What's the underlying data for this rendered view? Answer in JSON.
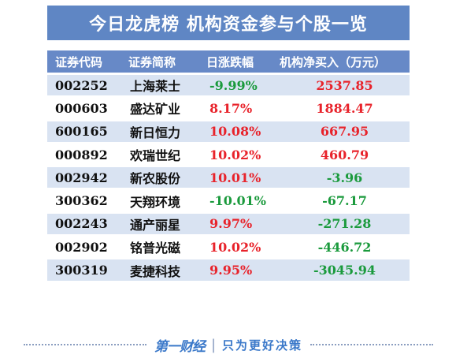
{
  "title": "今日龙虎榜  机构资金参与个股一览",
  "headers": [
    "证券代码",
    "证券简称",
    "日涨跌幅",
    "机构净买入（万元）"
  ],
  "rows": [
    {
      "code": "002252",
      "name": "上海莱士",
      "change": "-9.99%",
      "net_buy": "2537.85"
    },
    {
      "code": "000603",
      "name": "盛达矿业",
      "change": "8.17%",
      "net_buy": "1884.47"
    },
    {
      "code": "600165",
      "name": "新日恒力",
      "change": "10.08%",
      "net_buy": "667.95"
    },
    {
      "code": "000892",
      "name": "欢瑞世纪",
      "change": "10.02%",
      "net_buy": "460.79"
    },
    {
      "code": "002942",
      "name": "新农股份",
      "change": "10.01%",
      "net_buy": "-3.96"
    },
    {
      "code": "300362",
      "name": "天翔环境",
      "change": "-10.01%",
      "net_buy": "-67.17"
    },
    {
      "code": "002243",
      "name": "通产丽星",
      "change": "9.97%",
      "net_buy": "-271.28"
    },
    {
      "code": "002902",
      "name": "铭普光磁",
      "change": "10.02%",
      "net_buy": "-446.72"
    },
    {
      "code": "300319",
      "name": "麦捷科技",
      "change": "9.95%",
      "net_buy": "-3045.94"
    }
  ],
  "colors": {
    "positive": "#e8232b",
    "negative": "#1a9a3c",
    "header": "#6789c7",
    "title": "#5f86c4"
  },
  "footer": {
    "logo": "第一财经",
    "slogan": "只为更好决策"
  }
}
